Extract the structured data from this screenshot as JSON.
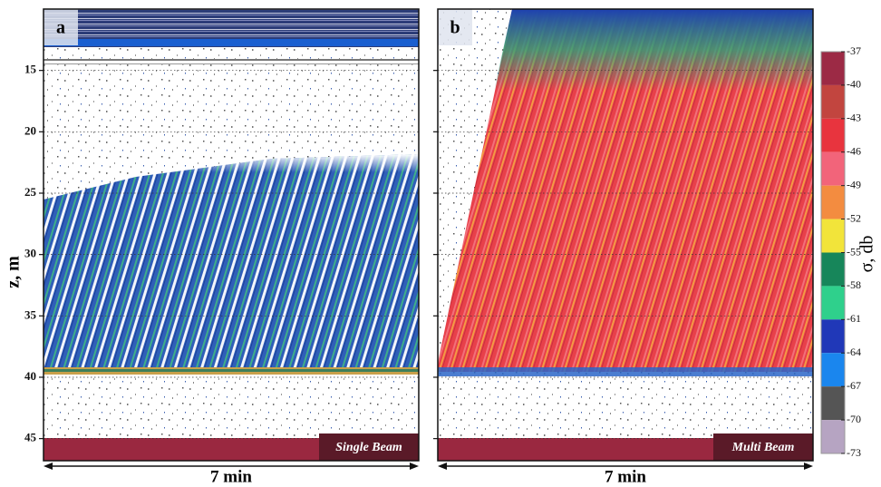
{
  "chart_data": [
    {
      "type": "echogram",
      "panel": "a",
      "annotation": "Single Beam",
      "xlabel": "7 min",
      "ylabel": "z, m",
      "ylim": [
        10,
        46.8
      ],
      "yticks": [
        15,
        20,
        25,
        30,
        35,
        40,
        45
      ]
    },
    {
      "type": "echogram",
      "panel": "b",
      "annotation": "Multi Beam",
      "xlabel": "7 min",
      "ylim": [
        10,
        46.8
      ],
      "yticks": [
        15,
        20,
        25,
        30,
        35,
        40,
        45
      ]
    }
  ],
  "colorbar": {
    "label": "σ, db",
    "ticks": [
      -37,
      -40,
      -43,
      -46,
      -49,
      -52,
      -55,
      -58,
      -61,
      -64,
      -67,
      -70,
      -73
    ],
    "colors": [
      "#9c2a45",
      "#c2453f",
      "#e8343e",
      "#f2647a",
      "#f38c40",
      "#f2e43a",
      "#17865a",
      "#2fd08c",
      "#2038b8",
      "#1a86ee",
      "#555555",
      "#b6a4c2"
    ]
  }
}
